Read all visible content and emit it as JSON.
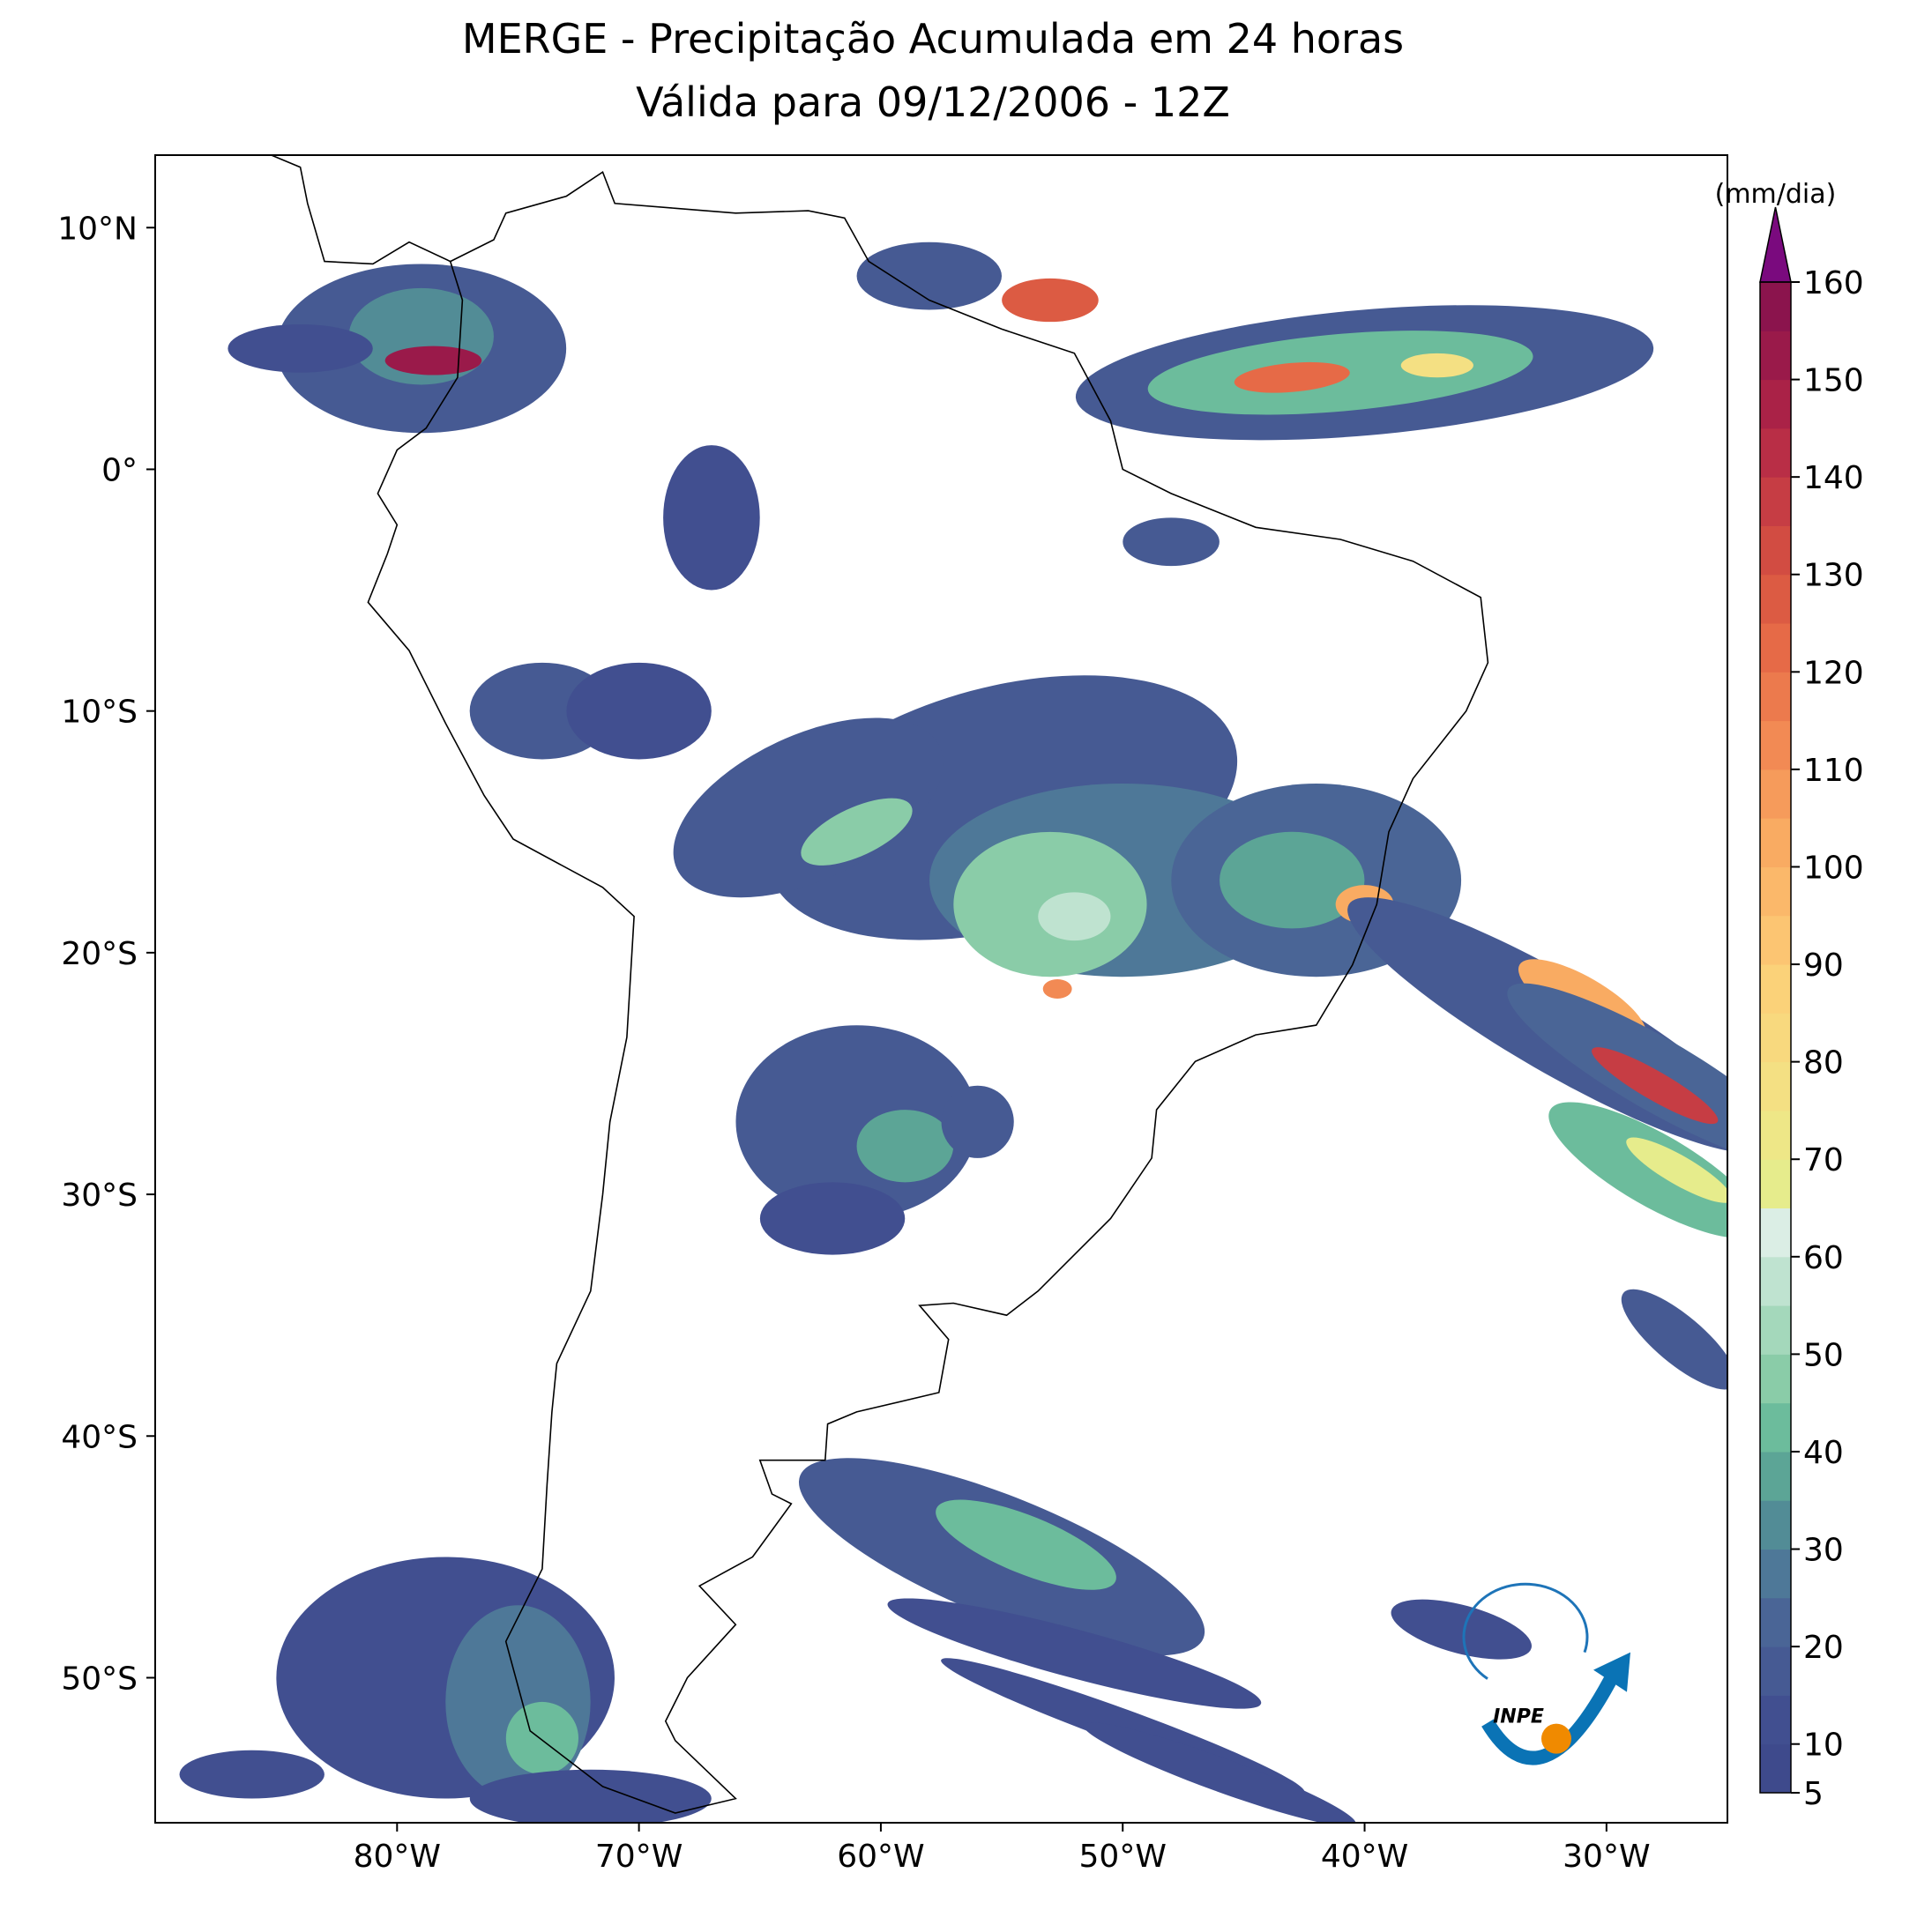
{
  "chart_data": {
    "type": "map",
    "title": "MERGE - Precipitação Acumulada em 24 horas",
    "subtitle": "Válida para 09/12/2006 - 12Z",
    "xlim": [
      -90,
      -25
    ],
    "ylim": [
      -56,
      13
    ],
    "xticks": [
      {
        "value": -80,
        "label": "80°W"
      },
      {
        "value": -70,
        "label": "70°W"
      },
      {
        "value": -60,
        "label": "60°W"
      },
      {
        "value": -50,
        "label": "50°W"
      },
      {
        "value": -40,
        "label": "40°W"
      },
      {
        "value": -30,
        "label": "30°W"
      }
    ],
    "yticks": [
      {
        "value": 10,
        "label": "10°N"
      },
      {
        "value": 0,
        "label": "0°"
      },
      {
        "value": -10,
        "label": "10°S"
      },
      {
        "value": -20,
        "label": "20°S"
      },
      {
        "value": -30,
        "label": "30°S"
      },
      {
        "value": -40,
        "label": "40°S"
      },
      {
        "value": -50,
        "label": "50°S"
      }
    ],
    "colorbar": {
      "label": "(mm/dia)",
      "lim": [
        5,
        160
      ],
      "ticks": [
        5,
        10,
        20,
        30,
        40,
        50,
        60,
        70,
        80,
        90,
        100,
        110,
        120,
        130,
        140,
        150,
        160
      ],
      "levels": [
        5,
        10,
        15,
        20,
        25,
        30,
        35,
        40,
        45,
        50,
        55,
        60,
        65,
        70,
        75,
        80,
        85,
        90,
        95,
        100,
        105,
        110,
        115,
        120,
        125,
        130,
        135,
        140,
        145,
        150,
        155,
        160
      ],
      "colors": [
        "#3e4a8c",
        "#414f90",
        "#465a93",
        "#4a6596",
        "#4e7898",
        "#528c96",
        "#5ca596",
        "#6cbc9c",
        "#8acca8",
        "#a4d8bb",
        "#bfe3d0",
        "#dbeee5",
        "#e6ec8c",
        "#eee787",
        "#f4e083",
        "#f8d97e",
        "#fbd279",
        "#fcc572",
        "#fbb86a",
        "#f9ab62",
        "#f69b5b",
        "#f28a54",
        "#ec7a4d",
        "#e66a47",
        "#dc5b43",
        "#d24c42",
        "#c63d44",
        "#b92e46",
        "#aa2247",
        "#9a1a4a",
        "#8b144d"
      ],
      "extend_color": "#7a0a7e"
    },
    "logo_text": "INPE"
  }
}
